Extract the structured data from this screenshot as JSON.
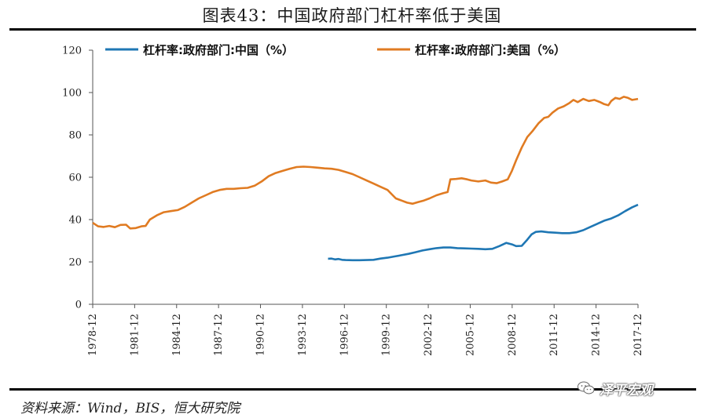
{
  "title": "图表43：中国政府部门杠杆率低于美国",
  "source_note": "资料来源：Wind，BIS，恒大研究院",
  "watermark_text": "泽平宏观",
  "chart_data": {
    "type": "line",
    "yticks": [
      0,
      20,
      40,
      60,
      80,
      100,
      120
    ],
    "ylim": [
      0,
      120
    ],
    "x_start": 1978.917,
    "x_end": 2017.917,
    "xticks": [
      "1978-12",
      "1981-12",
      "1984-12",
      "1987-12",
      "1990-12",
      "1993-12",
      "1996-12",
      "1999-12",
      "2002-12",
      "2005-12",
      "2008-12",
      "2011-12",
      "2014-12",
      "2017-12"
    ],
    "legend_placement": "top",
    "series": [
      {
        "name": "杠杆率:政府部门:中国（%）",
        "color": "#1f77b4",
        "points": [
          [
            1995.75,
            21.5
          ],
          [
            1996.0,
            21.6
          ],
          [
            1996.25,
            21.2
          ],
          [
            1996.5,
            21.4
          ],
          [
            1996.75,
            21.0
          ],
          [
            1997.0,
            20.9
          ],
          [
            1997.5,
            20.8
          ],
          [
            1998.0,
            20.8
          ],
          [
            1998.5,
            20.9
          ],
          [
            1999.0,
            21.0
          ],
          [
            1999.5,
            21.6
          ],
          [
            2000.0,
            22.0
          ],
          [
            2000.5,
            22.6
          ],
          [
            2001.0,
            23.2
          ],
          [
            2001.5,
            23.8
          ],
          [
            2002.0,
            24.6
          ],
          [
            2002.5,
            25.4
          ],
          [
            2003.0,
            26.0
          ],
          [
            2003.5,
            26.5
          ],
          [
            2004.0,
            26.8
          ],
          [
            2004.5,
            26.8
          ],
          [
            2005.0,
            26.5
          ],
          [
            2005.5,
            26.4
          ],
          [
            2006.0,
            26.3
          ],
          [
            2006.5,
            26.2
          ],
          [
            2007.0,
            26.0
          ],
          [
            2007.5,
            26.2
          ],
          [
            2008.0,
            27.5
          ],
          [
            2008.5,
            29.0
          ],
          [
            2008.9,
            28.3
          ],
          [
            2009.2,
            27.5
          ],
          [
            2009.6,
            27.6
          ],
          [
            2010.0,
            30.5
          ],
          [
            2010.3,
            33.0
          ],
          [
            2010.6,
            34.2
          ],
          [
            2011.0,
            34.4
          ],
          [
            2011.5,
            34.0
          ],
          [
            2012.0,
            33.8
          ],
          [
            2012.5,
            33.6
          ],
          [
            2013.0,
            33.6
          ],
          [
            2013.5,
            34.0
          ],
          [
            2014.0,
            35.0
          ],
          [
            2014.5,
            36.5
          ],
          [
            2015.0,
            38.0
          ],
          [
            2015.5,
            39.5
          ],
          [
            2016.0,
            40.5
          ],
          [
            2016.5,
            42.0
          ],
          [
            2017.0,
            44.0
          ],
          [
            2017.5,
            45.8
          ],
          [
            2017.917,
            47.0
          ]
        ]
      },
      {
        "name": "杠杆率:政府部门:美国（%）",
        "color": "#e07b22",
        "points": [
          [
            1978.917,
            38.5
          ],
          [
            1979.3,
            36.8
          ],
          [
            1979.7,
            36.5
          ],
          [
            1980.1,
            37.0
          ],
          [
            1980.5,
            36.4
          ],
          [
            1980.9,
            37.5
          ],
          [
            1981.3,
            37.6
          ],
          [
            1981.6,
            35.8
          ],
          [
            1982.0,
            36.0
          ],
          [
            1982.4,
            36.8
          ],
          [
            1982.7,
            37.0
          ],
          [
            1983.0,
            40.0
          ],
          [
            1983.5,
            42.0
          ],
          [
            1984.0,
            43.5
          ],
          [
            1984.5,
            44.0
          ],
          [
            1985.0,
            44.5
          ],
          [
            1985.5,
            46.0
          ],
          [
            1986.0,
            48.0
          ],
          [
            1986.5,
            50.0
          ],
          [
            1987.0,
            51.5
          ],
          [
            1987.5,
            53.0
          ],
          [
            1988.0,
            54.0
          ],
          [
            1988.5,
            54.5
          ],
          [
            1989.0,
            54.5
          ],
          [
            1989.5,
            54.8
          ],
          [
            1990.0,
            55.0
          ],
          [
            1990.5,
            56.0
          ],
          [
            1991.0,
            58.0
          ],
          [
            1991.5,
            60.5
          ],
          [
            1992.0,
            62.0
          ],
          [
            1992.5,
            63.0
          ],
          [
            1993.0,
            64.0
          ],
          [
            1993.5,
            64.8
          ],
          [
            1994.0,
            65.0
          ],
          [
            1994.5,
            64.8
          ],
          [
            1995.0,
            64.5
          ],
          [
            1995.5,
            64.2
          ],
          [
            1996.0,
            64.0
          ],
          [
            1996.5,
            63.5
          ],
          [
            1997.0,
            62.5
          ],
          [
            1997.5,
            61.5
          ],
          [
            1998.0,
            60.0
          ],
          [
            1998.5,
            58.5
          ],
          [
            1999.0,
            57.0
          ],
          [
            1999.5,
            55.5
          ],
          [
            2000.0,
            54.0
          ],
          [
            2000.3,
            52.0
          ],
          [
            2000.6,
            50.0
          ],
          [
            2001.0,
            49.0
          ],
          [
            2001.4,
            48.0
          ],
          [
            2001.8,
            47.5
          ],
          [
            2002.2,
            48.3
          ],
          [
            2002.6,
            49.0
          ],
          [
            2003.0,
            50.0
          ],
          [
            2003.5,
            51.5
          ],
          [
            2004.0,
            52.5
          ],
          [
            2004.3,
            53.0
          ],
          [
            2004.5,
            59.0
          ],
          [
            2004.9,
            59.2
          ],
          [
            2005.3,
            59.5
          ],
          [
            2005.7,
            59.0
          ],
          [
            2006.0,
            58.5
          ],
          [
            2006.5,
            58.0
          ],
          [
            2007.0,
            58.5
          ],
          [
            2007.4,
            57.5
          ],
          [
            2007.8,
            57.2
          ],
          [
            2008.2,
            58.0
          ],
          [
            2008.6,
            59.0
          ],
          [
            2008.9,
            63.0
          ],
          [
            2009.2,
            68.0
          ],
          [
            2009.6,
            74.0
          ],
          [
            2010.0,
            79.0
          ],
          [
            2010.4,
            82.0
          ],
          [
            2010.8,
            85.5
          ],
          [
            2011.2,
            88.0
          ],
          [
            2011.5,
            88.5
          ],
          [
            2011.8,
            90.5
          ],
          [
            2012.2,
            92.5
          ],
          [
            2012.6,
            93.5
          ],
          [
            2013.0,
            95.0
          ],
          [
            2013.3,
            96.5
          ],
          [
            2013.6,
            95.5
          ],
          [
            2014.0,
            97.0
          ],
          [
            2014.4,
            96.0
          ],
          [
            2014.8,
            96.5
          ],
          [
            2015.2,
            95.5
          ],
          [
            2015.5,
            94.5
          ],
          [
            2015.8,
            94.0
          ],
          [
            2016.0,
            96.0
          ],
          [
            2016.3,
            97.5
          ],
          [
            2016.6,
            97.0
          ],
          [
            2016.9,
            98.0
          ],
          [
            2017.2,
            97.5
          ],
          [
            2017.5,
            96.5
          ],
          [
            2017.917,
            97.0
          ]
        ]
      }
    ]
  }
}
